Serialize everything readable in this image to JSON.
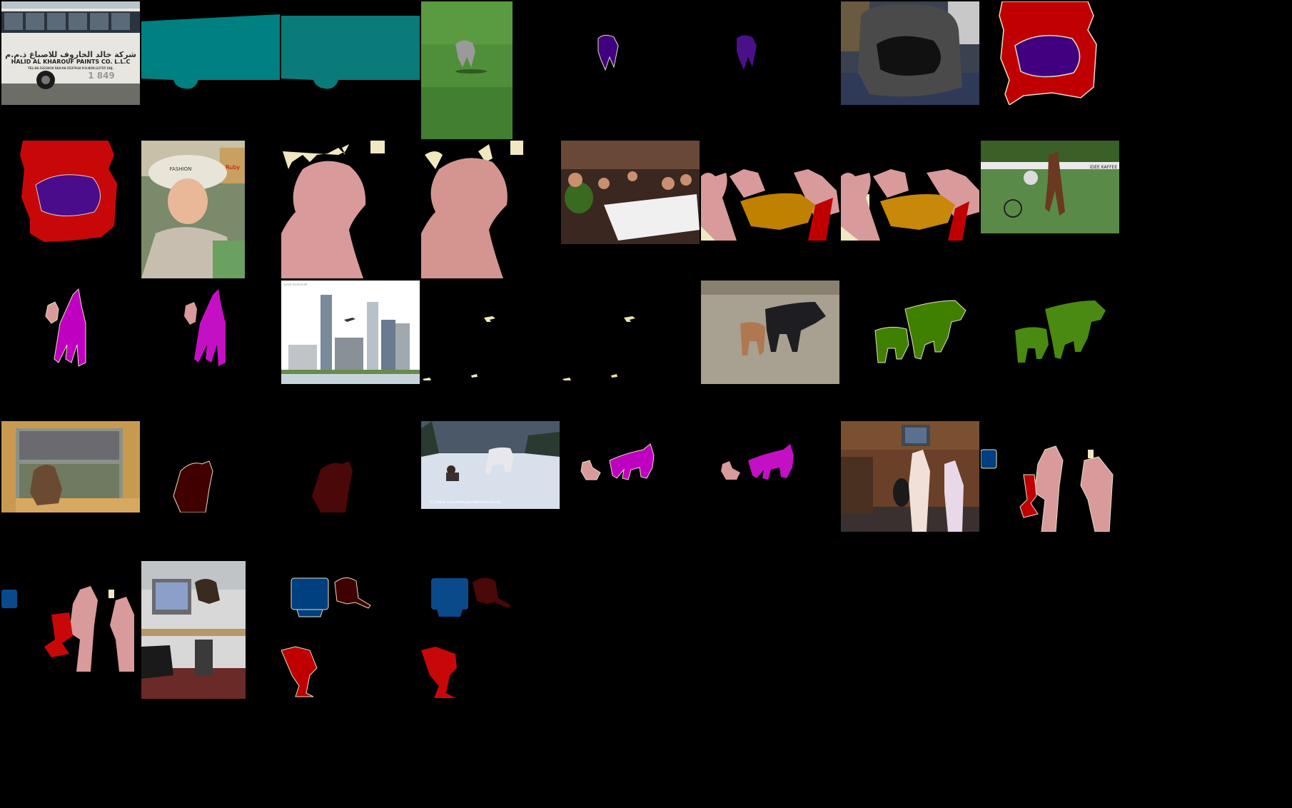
{
  "figure": {
    "background": "#000000",
    "rows": 5,
    "columns": 8,
    "columns_per_sample": 3
  },
  "label_colors": {
    "bus": "#008080",
    "dog": "#400080",
    "chair": "#c00000",
    "person": "#d89a9a",
    "background-object": "#f0e8c0",
    "dining-table": "#c08000",
    "horse": "#c000c0",
    "aeroplane": "#f0e8c0",
    "cow": "#408000",
    "cat": "#400000",
    "tv-monitor": "#004080"
  },
  "samples": [
    {
      "id": "bus",
      "classes": [
        "bus"
      ],
      "photo_text": {
        "sign_main": "HALID AL KHAROUF PAINTS CO. L.L.C",
        "sign_arabic": "شركة خالد الخاروف للاصباغ ذ.م.م",
        "sign_sub": "TEL:06-5322919   FAX:06-5537918  P.O.BOX:22755 SHJ.",
        "number": "1 849"
      }
    },
    {
      "id": "dog-grass",
      "classes": [
        "dog"
      ]
    },
    {
      "id": "dog-chair",
      "classes": [
        "chair",
        "dog"
      ]
    },
    {
      "id": "girl-hat",
      "classes": [
        "person",
        "background-object"
      ],
      "photo_text": {
        "hat": "FASHION",
        "box": "Ruby"
      }
    },
    {
      "id": "restaurant",
      "classes": [
        "person",
        "dining-table",
        "chair",
        "background-object"
      ]
    },
    {
      "id": "harness-race",
      "classes": [
        "person",
        "horse"
      ],
      "photo_text": {
        "banner": "IDEE KAFFEE"
      }
    },
    {
      "id": "city-plane",
      "classes": [
        "aeroplane"
      ],
      "photo_text": {
        "watermark": "sarah.mcdonnell"
      }
    },
    {
      "id": "cows",
      "classes": [
        "cow"
      ]
    },
    {
      "id": "window-cat",
      "classes": [
        "cat"
      ]
    },
    {
      "id": "snow-horse",
      "classes": [
        "person",
        "horse"
      ],
      "photo_text": {
        "watermark": "© Lothar Lenz  www.pferdefotoarchiv.de"
      }
    },
    {
      "id": "girls-room",
      "classes": [
        "tv-monitor",
        "person",
        "chair",
        "background-object"
      ]
    },
    {
      "id": "desk-cat",
      "classes": [
        "tv-monitor",
        "cat",
        "chair"
      ]
    }
  ]
}
